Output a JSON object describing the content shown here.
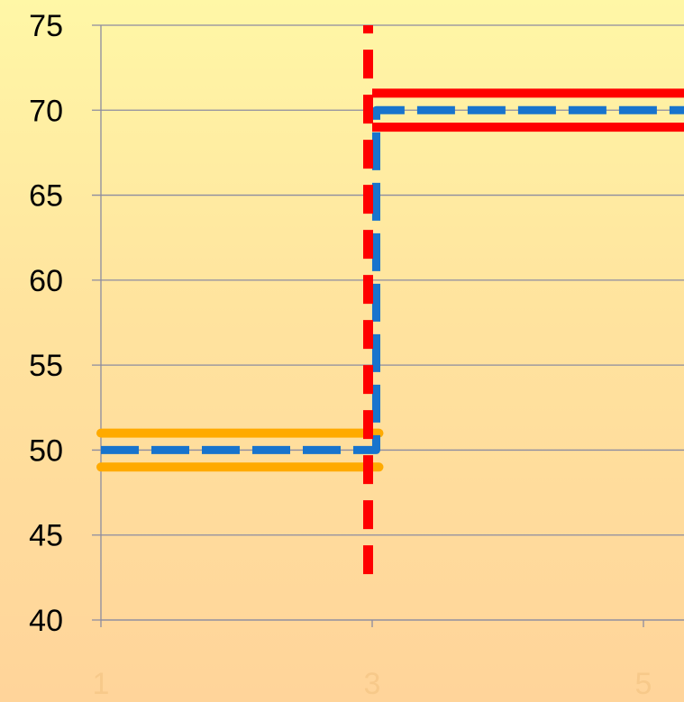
{
  "chart_data": {
    "type": "line",
    "title": "",
    "xlabel": "",
    "ylabel": "",
    "xlim": [
      1,
      6.6
    ],
    "ylim": [
      40,
      75
    ],
    "x_ticks": [
      "1",
      "3",
      "5"
    ],
    "y_ticks": [
      "40",
      "45",
      "50",
      "55",
      "60",
      "65",
      "70",
      "75"
    ],
    "grid": "horizontal",
    "series": [
      {
        "color": "#ffaa00",
        "style": "solid",
        "points": [
          [
            1,
            51
          ],
          [
            3.05,
            51
          ]
        ]
      },
      {
        "color": "#ffaa00",
        "style": "solid",
        "points": [
          [
            1,
            49
          ],
          [
            3.05,
            49
          ]
        ]
      },
      {
        "color": "#ff0000",
        "style": "solid",
        "points": [
          [
            3,
            71
          ],
          [
            6.6,
            71
          ]
        ]
      },
      {
        "color": "#ff0000",
        "style": "solid",
        "points": [
          [
            3,
            69
          ],
          [
            6.6,
            69
          ]
        ]
      },
      {
        "color": "#1874cd",
        "style": "step-dashed",
        "points": [
          [
            1,
            50
          ],
          [
            2.95,
            50
          ],
          [
            3.03,
            50
          ],
          [
            3.03,
            70
          ],
          [
            6.6,
            70
          ]
        ]
      },
      {
        "color": "#ff0000",
        "style": "dashed-vertical",
        "points": [
          [
            2.97,
            42.7
          ],
          [
            2.97,
            75
          ]
        ]
      }
    ],
    "colors": {
      "grid": "#8c8ca0",
      "axis": "#8c8ca0",
      "y_tick_text": "#000000",
      "x_tick_text": "#f7c98a"
    }
  }
}
